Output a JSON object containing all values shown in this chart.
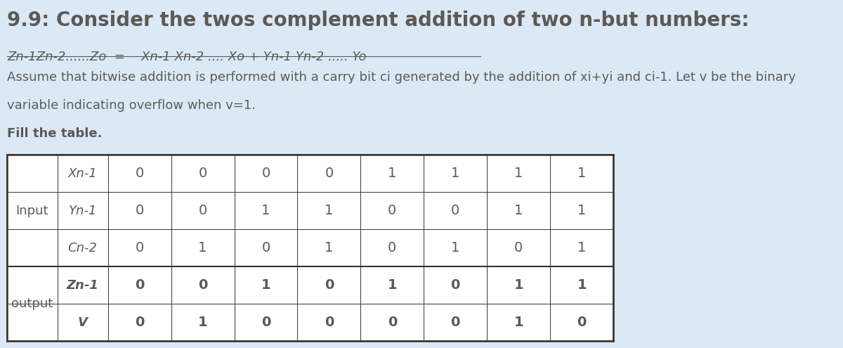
{
  "title": "9.9: Consider the twos complement addition of two n-but numbers:",
  "line2": "Zn-1Zn-2......Zo  =    Xn-1 Xn-2 .... Xo + Yn-1 Yn-2 ..... Yo",
  "line3": "Assume that bitwise addition is performed with a carry bit ci generated by the addition of xi+yi and ci-1. Let v be the binary",
  "line4": "variable indicating overflow when v=1.",
  "line5": "Fill the table.",
  "bg_color": "#dce9f5",
  "text_color": "#5a5a5a",
  "table_bg": "#ffffff",
  "row_labels": [
    "Xn-1",
    "Yn-1",
    "Cn-2",
    "Zn-1",
    "V"
  ],
  "section_labels": [
    "Input",
    "output"
  ],
  "col_values": [
    [
      0,
      0,
      0,
      0,
      1,
      1,
      1,
      1
    ],
    [
      0,
      0,
      1,
      1,
      0,
      0,
      1,
      1
    ],
    [
      0,
      1,
      0,
      1,
      0,
      1,
      0,
      1
    ],
    [
      0,
      0,
      1,
      0,
      1,
      0,
      1,
      1
    ],
    [
      0,
      1,
      0,
      0,
      0,
      0,
      1,
      0
    ]
  ],
  "bold_rows": [
    3,
    4
  ],
  "title_fontsize": 20,
  "body_fontsize": 14,
  "table_fontsize": 14
}
